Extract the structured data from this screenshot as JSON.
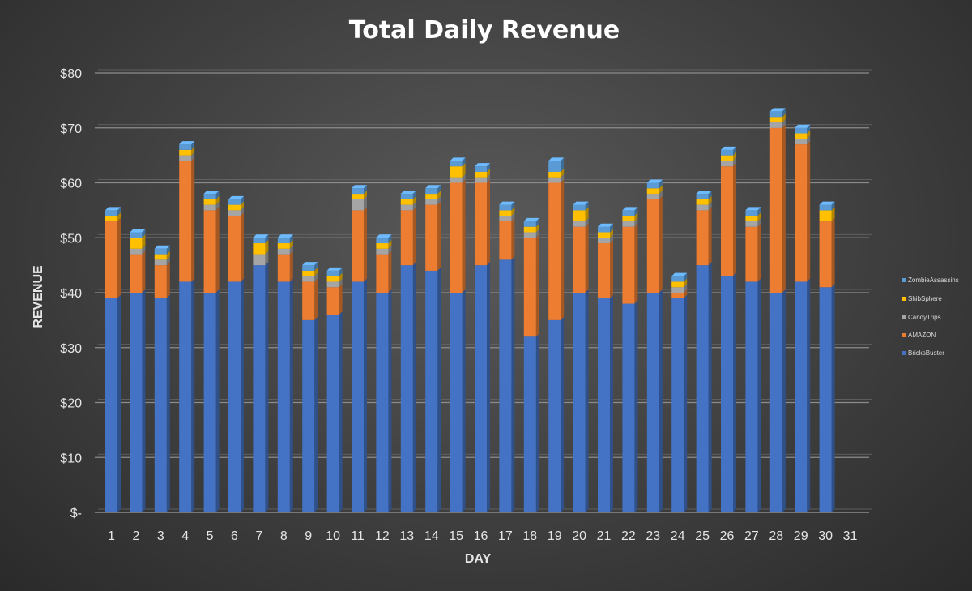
{
  "chart_data": {
    "type": "bar",
    "stacked": true,
    "title": "Total Daily Revenue",
    "xlabel": "DAY",
    "ylabel": "REVENUE",
    "ylim": [
      0,
      80
    ],
    "yticks": [
      0,
      10,
      20,
      30,
      40,
      50,
      60,
      70,
      80
    ],
    "ytick_labels": [
      "$-",
      "$10",
      "$20",
      "$30",
      "$40",
      "$50",
      "$60",
      "$70",
      "$80"
    ],
    "categories": [
      "1",
      "2",
      "3",
      "4",
      "5",
      "6",
      "7",
      "8",
      "9",
      "10",
      "11",
      "12",
      "13",
      "14",
      "15",
      "16",
      "17",
      "18",
      "19",
      "20",
      "21",
      "22",
      "23",
      "24",
      "25",
      "26",
      "27",
      "28",
      "29",
      "30",
      "31"
    ],
    "grid": true,
    "legend_position": "right",
    "series": [
      {
        "name": "BricksBuster",
        "color": "#4472c4",
        "values": [
          39,
          40,
          39,
          42,
          40,
          42,
          45,
          42,
          35,
          36,
          42,
          40,
          45,
          44,
          40,
          45,
          46,
          32,
          35,
          40,
          39,
          38,
          40,
          39,
          45,
          43,
          42,
          40,
          42,
          41,
          0
        ]
      },
      {
        "name": "AMAZON",
        "color": "#ed7d31",
        "values": [
          14,
          7,
          6,
          22,
          15,
          12,
          0,
          5,
          7,
          5,
          13,
          7,
          10,
          12,
          20,
          15,
          7,
          18,
          25,
          12,
          10,
          14,
          17,
          1,
          10,
          20,
          10,
          30,
          25,
          12,
          0
        ]
      },
      {
        "name": "CandyTrips",
        "color": "#a5a5a5",
        "values": [
          0,
          1,
          1,
          1,
          1,
          1,
          2,
          1,
          1,
          1,
          2,
          1,
          1,
          1,
          1,
          1,
          1,
          1,
          1,
          1,
          1,
          1,
          1,
          1,
          1,
          1,
          1,
          1,
          1,
          0,
          0
        ]
      },
      {
        "name": "ShibSphere",
        "color": "#ffc000",
        "values": [
          1,
          2,
          1,
          1,
          1,
          1,
          2,
          1,
          1,
          1,
          1,
          1,
          1,
          1,
          2,
          1,
          1,
          1,
          1,
          2,
          1,
          1,
          1,
          1,
          1,
          1,
          1,
          1,
          1,
          2,
          0
        ]
      },
      {
        "name": "ZombieAssassins",
        "color": "#5b9bd5",
        "values": [
          1,
          1,
          1,
          1,
          1,
          1,
          1,
          1,
          1,
          1,
          1,
          1,
          1,
          1,
          1,
          1,
          1,
          1,
          2,
          1,
          1,
          1,
          1,
          1,
          1,
          1,
          1,
          1,
          1,
          1,
          0
        ]
      }
    ]
  }
}
